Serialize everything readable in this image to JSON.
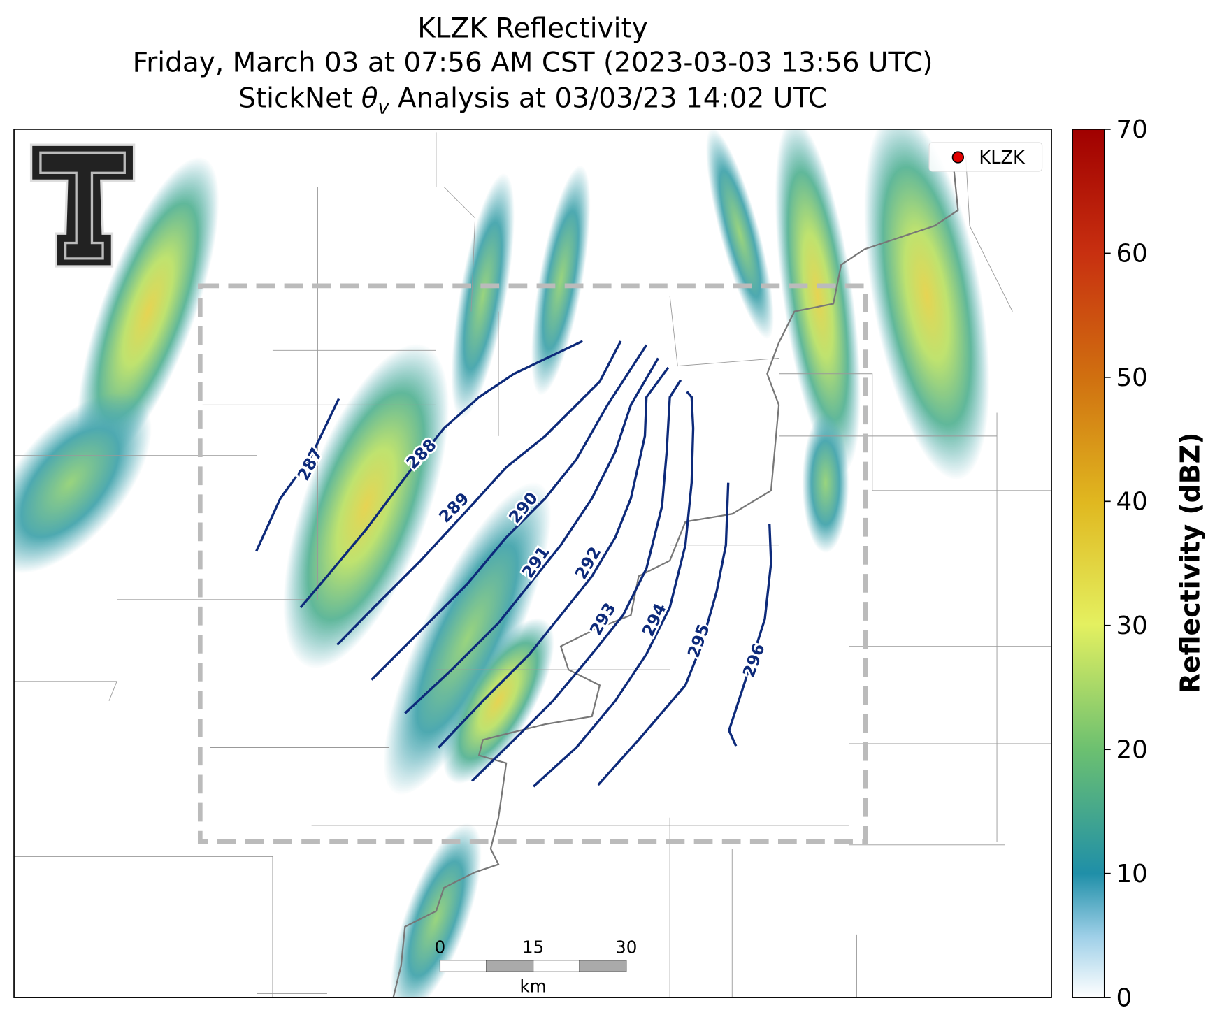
{
  "title": "KLZK Reflectivity",
  "subtitle": "Friday, March 03 at 07:56 AM CST (2023-03-03 13:56 UTC)",
  "analysis_title": {
    "before": "StickNet",
    "symbol": "θ",
    "subscript": "v",
    "after": "Analysis at 03/03/23 14:02 UTC"
  },
  "legend": {
    "label": "KLZK",
    "color": "#e00000",
    "corner": "upper right"
  },
  "contours": {
    "levels": [
      287,
      288,
      289,
      290,
      291,
      292,
      293,
      294,
      295,
      296
    ],
    "color": "#0d2a7a"
  },
  "colorbar": {
    "label": "Reflectivity (dBZ)",
    "lim": [
      0,
      70
    ],
    "ticks": [
      0,
      10,
      20,
      30,
      40,
      50,
      60,
      70
    ]
  },
  "scale_bar": {
    "ticks": [
      0,
      15,
      30
    ],
    "unit": "km"
  }
}
